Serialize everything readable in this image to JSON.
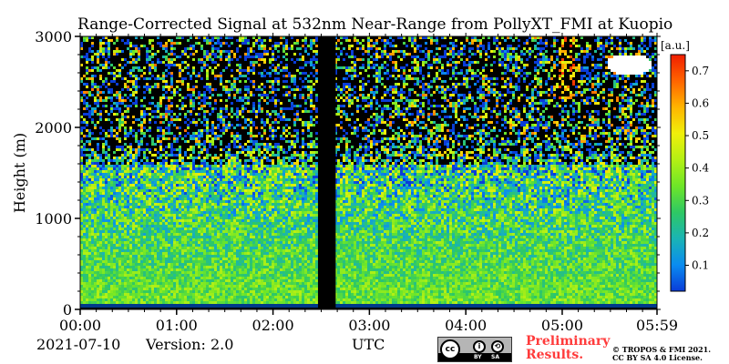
{
  "chart_data": {
    "type": "heatmap",
    "title": "Range-Corrected Signal at 532nm Near-Range from PollyXT_FMI at Kuopio",
    "xlabel": "UTC",
    "ylabel": "Height (m)",
    "xlim_minutes": [
      0,
      359
    ],
    "ylim": [
      0,
      3000
    ],
    "x_ticks": [
      {
        "value": 0,
        "label": "00:00"
      },
      {
        "value": 60,
        "label": "01:00"
      },
      {
        "value": 120,
        "label": "02:00"
      },
      {
        "value": 180,
        "label": "03:00"
      },
      {
        "value": 240,
        "label": "04:00"
      },
      {
        "value": 300,
        "label": "05:00"
      },
      {
        "value": 359,
        "label": "05:59"
      }
    ],
    "y_ticks": [
      {
        "value": 0,
        "label": "0"
      },
      {
        "value": 1000,
        "label": "1000"
      },
      {
        "value": 2000,
        "label": "2000"
      },
      {
        "value": 3000,
        "label": "3000"
      }
    ],
    "colorbar": {
      "label": "[a.u.]",
      "range": [
        0.02,
        0.75
      ],
      "ticks": [
        {
          "value": 0.1,
          "label": "0.1"
        },
        {
          "value": 0.2,
          "label": "0.2"
        },
        {
          "value": 0.3,
          "label": "0.3"
        },
        {
          "value": 0.4,
          "label": "0.4"
        },
        {
          "value": 0.5,
          "label": "0.5"
        },
        {
          "value": 0.6,
          "label": "0.6"
        },
        {
          "value": 0.7,
          "label": "0.7"
        }
      ],
      "colors": [
        "#0a3cd8",
        "#0a8cf0",
        "#1ab4b4",
        "#2ec864",
        "#6ee628",
        "#b4f014",
        "#f0f00a",
        "#ffb400",
        "#ff6400",
        "#f01e00"
      ]
    },
    "no_data_intervals_minutes": [
      [
        148,
        159
      ]
    ],
    "features": [
      {
        "name": "near-surface layer",
        "height_range": [
          0,
          60
        ],
        "value_range": [
          0.3,
          0.4
        ]
      },
      {
        "name": "aerosol layer",
        "height_range": [
          60,
          1200
        ],
        "value_range": [
          0.25,
          0.35
        ]
      },
      {
        "name": "noisy upper range",
        "height_range": [
          2000,
          3000
        ],
        "value_range": [
          0.0,
          0.5
        ]
      },
      {
        "name": "cloud near 05:10",
        "time_minutes": [
          298,
          308
        ],
        "height_range": [
          2300,
          3000
        ],
        "value_range": [
          0.5,
          0.75
        ]
      },
      {
        "name": "saturated cloud",
        "time_minutes": [
          328,
          355
        ],
        "height_range": [
          2580,
          2800
        ],
        "value": "above range"
      }
    ]
  },
  "footer": {
    "date": "2021-07-10",
    "version": "Version: 2.0",
    "license_badge": [
      "BY",
      "SA"
    ],
    "preliminary": [
      "Preliminary",
      "Results."
    ],
    "copyright": [
      "© TROPOS & FMI 2021.",
      "CC BY SA 4.0 License."
    ]
  }
}
